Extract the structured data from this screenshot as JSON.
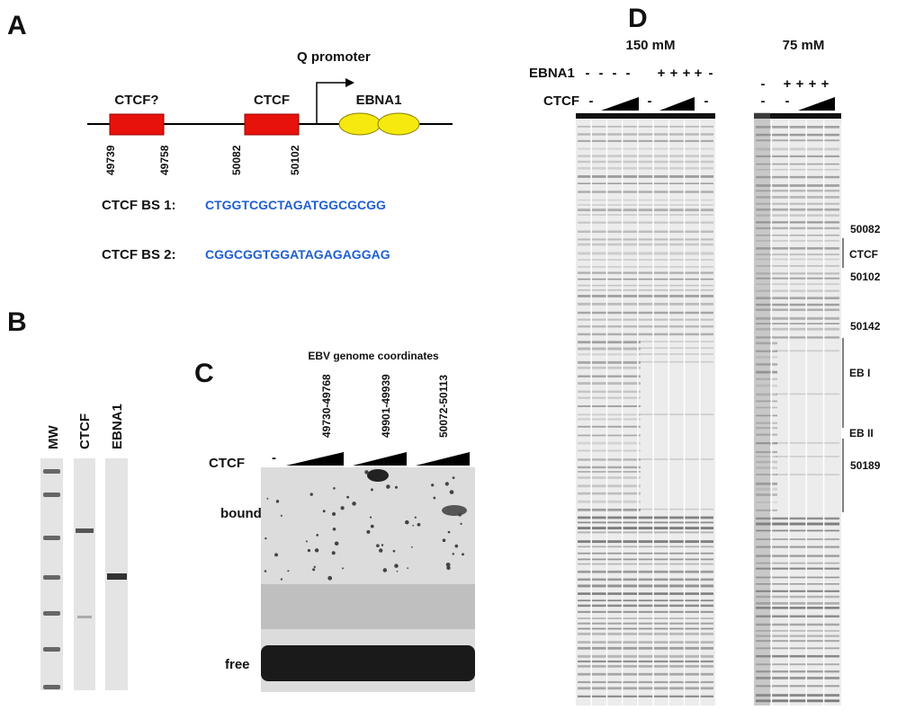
{
  "panel_a": {
    "label": "A",
    "promoter": "Q promoter",
    "boxes": [
      "CTCF?",
      "CTCF"
    ],
    "ebna1": "EBNA1",
    "coordinates": [
      "49739",
      "49758",
      "50082",
      "50102"
    ],
    "binding_sites": [
      {
        "name": "CTCF BS 1:",
        "sequence": "CTGGTCGCTAGATGGCGCGG"
      },
      {
        "name": "CTCF BS 2:",
        "sequence": "CGGCGGTGGATAGAGAGGAG"
      }
    ]
  },
  "panel_b": {
    "label": "B",
    "lanes": [
      "MW",
      "CTCF",
      "EBNA1"
    ]
  },
  "panel_c": {
    "label": "C",
    "title": "EBV genome coordinates",
    "probes": [
      "49730-49768",
      "49901-49939",
      "50072-50113"
    ],
    "row_label": "CTCF",
    "control": "-",
    "bands": [
      "bound",
      "free"
    ]
  },
  "panel_d": {
    "label": "D",
    "rows": [
      "EBNA1",
      "CTCF"
    ],
    "gels": [
      {
        "title": "150 mM",
        "ebna1": [
          "-",
          "-",
          "-",
          "-",
          "+",
          "+",
          "+",
          "+",
          "-"
        ],
        "ctcf": [
          "-",
          "-",
          "-"
        ]
      },
      {
        "title": "75 mM",
        "ebna1": [
          "-",
          "+",
          "+",
          "+",
          "+"
        ],
        "ctcf": [
          "-",
          "-"
        ]
      }
    ],
    "markers": [
      "50082",
      "CTCF",
      "50102",
      "50142",
      "EB I",
      "EB II",
      "50189"
    ]
  }
}
